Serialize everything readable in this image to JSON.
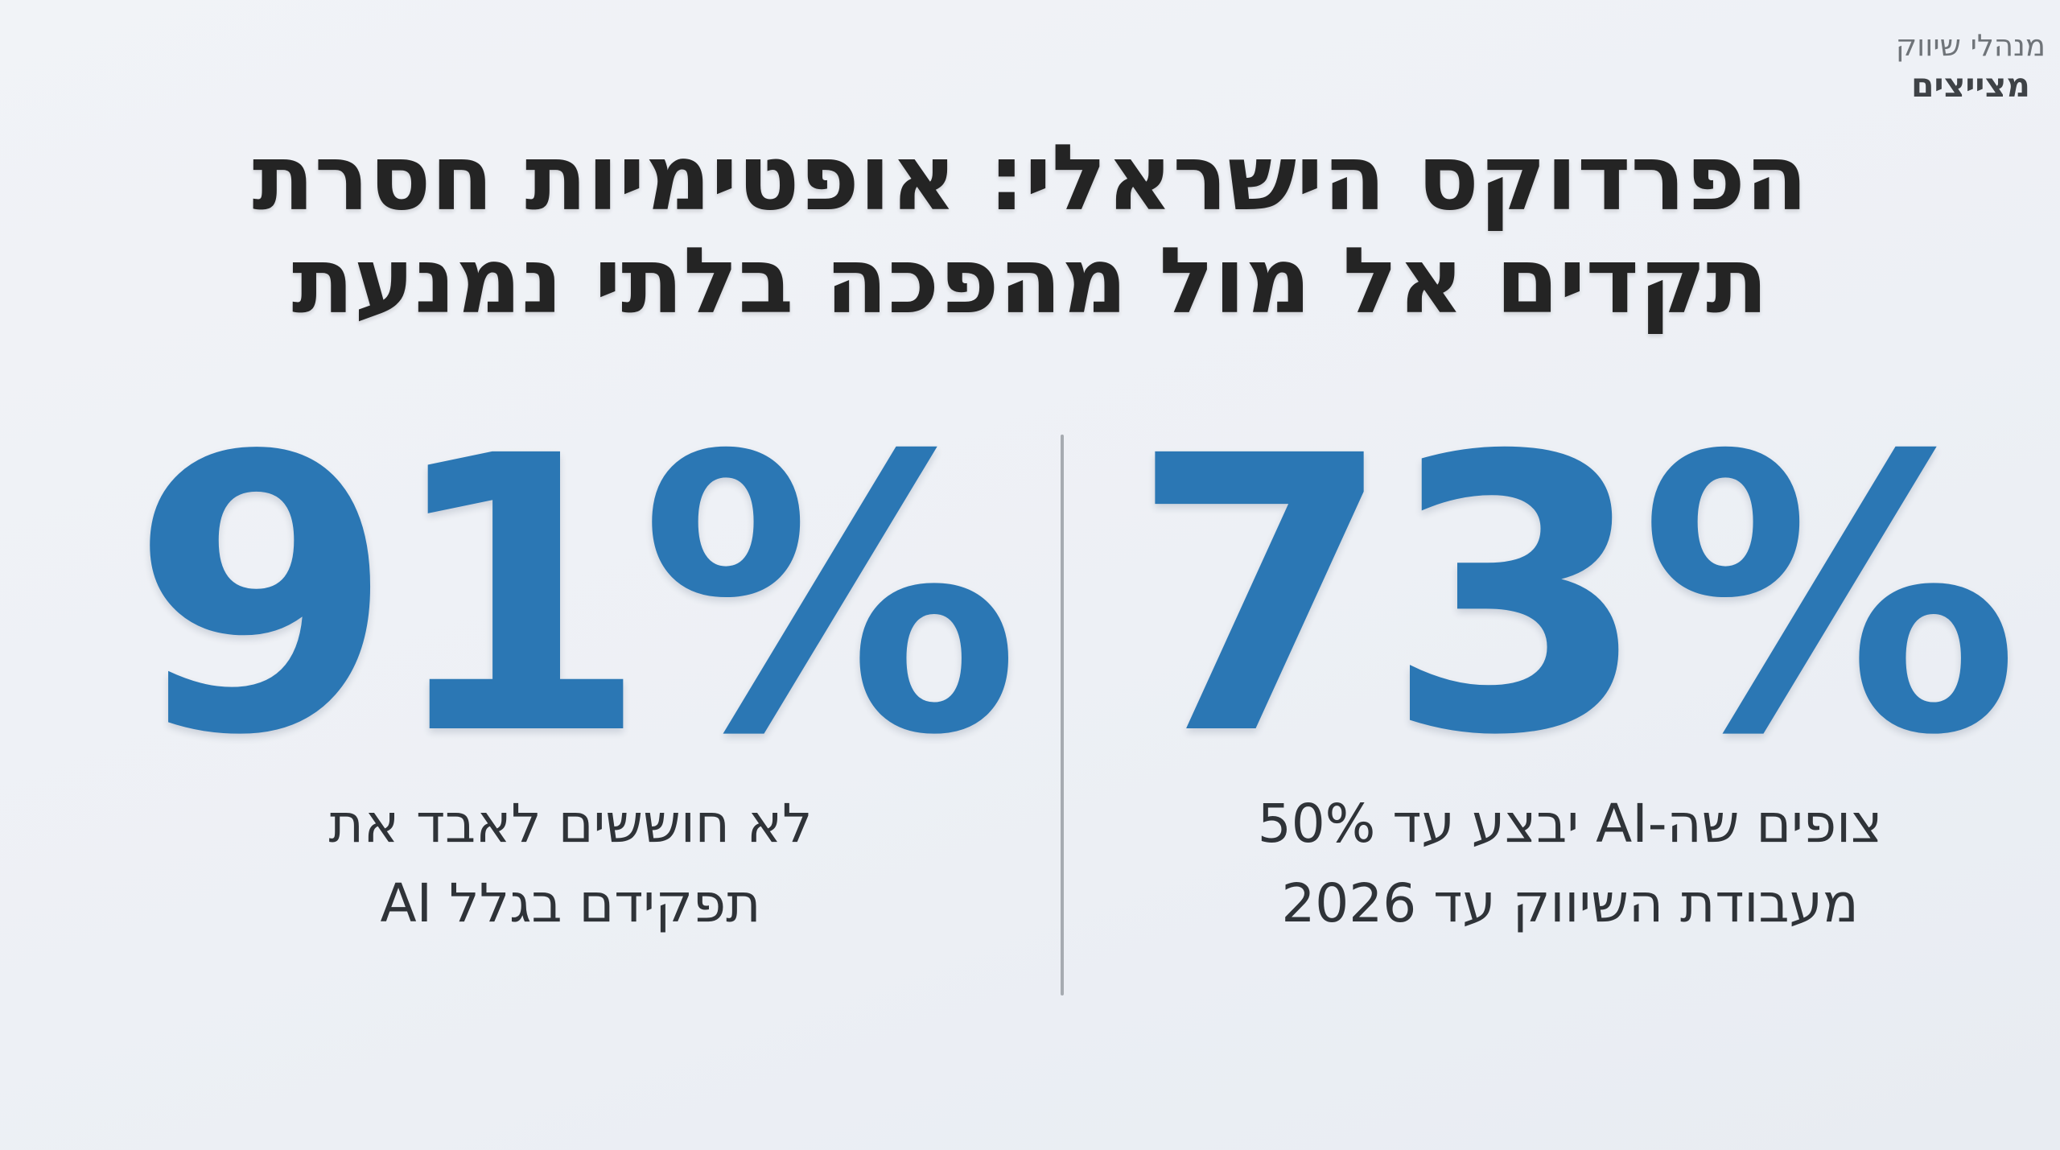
{
  "brand": {
    "line1": "מנהלי שיווק",
    "line2": "מצייצים"
  },
  "title": {
    "lines": [
      "הפרדוקס הישראלי: אופטימיות חסרת",
      "תקדים אל מול מהפכה בלתי נמנעת"
    ]
  },
  "stats": [
    {
      "value": "91%",
      "caption_lines": [
        "לא חוששים לאבד את",
        "תפקידם בגלל AI"
      ]
    },
    {
      "value": "73%",
      "caption_lines": [
        "צופים שה-AI יבצע עד 50%",
        "מעבודת השיווק עד 2026"
      ]
    }
  ],
  "colors": {
    "background": "#edf0f5",
    "accent_blue": "#2b77b4",
    "title_text": "#242424",
    "caption_text": "#2f3338",
    "divider": "#a6abb1",
    "brand_text_top": "#6f7479",
    "brand_text_bottom": "#3e4246"
  },
  "chart_data": {
    "type": "table",
    "title": "הפרדוקס הישראלי: אופטימיות חסרת תקדים אל מול מהפכה בלתי נמנעת",
    "stats": [
      {
        "value": 91,
        "unit": "%",
        "label": "לא חוששים לאבד את תפקידם בגלל AI"
      },
      {
        "value": 73,
        "unit": "%",
        "label": "צופים שה-AI יבצע עד 50% מעבודת השיווק עד 2026"
      }
    ],
    "layout_hints": {
      "style": "big-number KPI infographic",
      "divider": "vertical gray line between the two stats",
      "value_color": "#2b77b4"
    }
  }
}
